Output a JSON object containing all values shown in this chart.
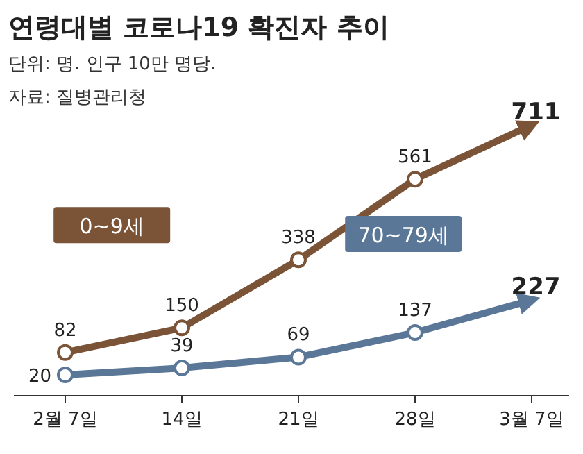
{
  "chart_data": {
    "type": "line",
    "title": "연령대별 코로나19 확진자 추이",
    "subtitle": "단위: 명. 인구 10만 명당.",
    "annotations": [
      "자료: 질병관리청"
    ],
    "categories": [
      "2월 7일",
      "14일",
      "21일",
      "28일",
      "3월 7일"
    ],
    "series": [
      {
        "name": "0~9세",
        "color": "#7b5438",
        "values": [
          82,
          150,
          338,
          561,
          711
        ]
      },
      {
        "name": "70~79세",
        "color": "#5a7797",
        "values": [
          20,
          39,
          69,
          137,
          227
        ]
      }
    ],
    "data_labels": true,
    "marker": "circle",
    "grid": false
  }
}
